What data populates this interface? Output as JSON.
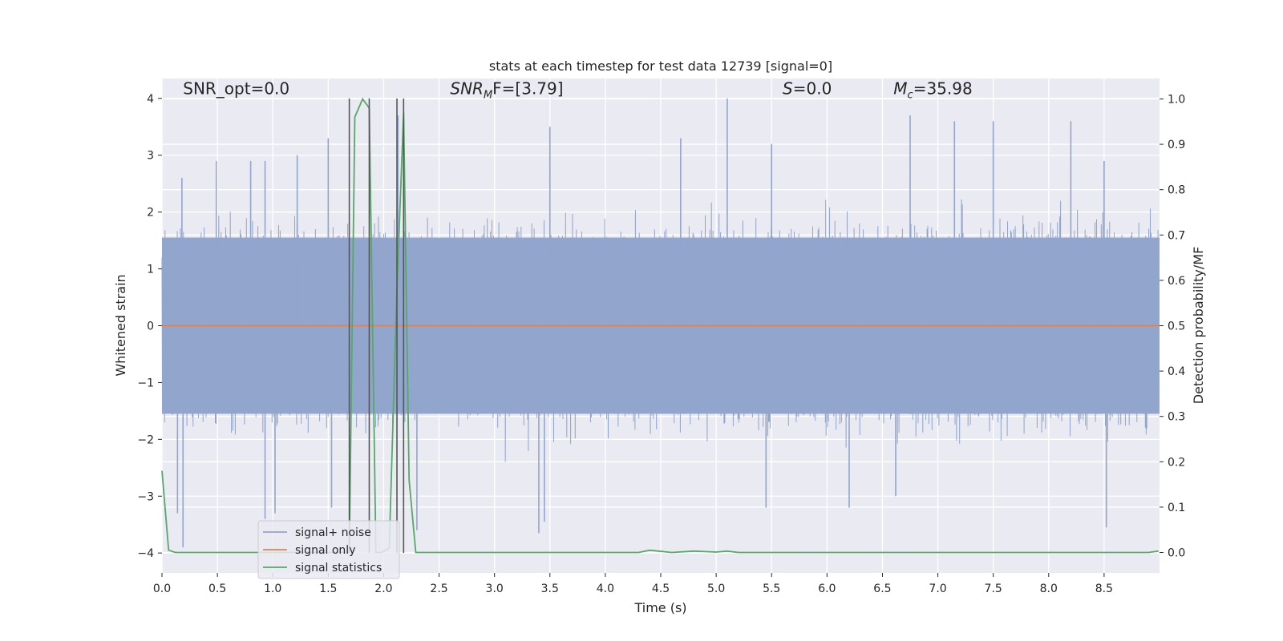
{
  "chart_data": {
    "type": "line",
    "title": "stats at each timestep for test data 12739 [signal=0]",
    "xlabel": "Time (s)",
    "ylabel": "Whitened strain",
    "y2label": "Detection probability/MF",
    "xlim": [
      0.0,
      9.0
    ],
    "ylim": [
      -4.35,
      4.35
    ],
    "y2lim": [
      -0.045,
      1.045
    ],
    "x_ticks": [
      0.0,
      0.5,
      1.0,
      1.5,
      2.0,
      2.5,
      3.0,
      3.5,
      4.0,
      4.5,
      5.0,
      5.5,
      6.0,
      6.5,
      7.0,
      7.5,
      8.0,
      8.5
    ],
    "x_tick_labels": [
      "0.0",
      "0.5",
      "1.0",
      "1.5",
      "2.0",
      "2.5",
      "3.0",
      "3.5",
      "4.0",
      "4.5",
      "5.0",
      "5.5",
      "6.0",
      "6.5",
      "7.0",
      "7.5",
      "8.0",
      "8.5"
    ],
    "y_ticks": [
      4,
      3,
      2,
      1,
      0,
      -1,
      -2,
      -3,
      -4
    ],
    "y_tick_labels": [
      "4",
      "3",
      "2",
      "1",
      "0",
      "−1",
      "−2",
      "−3",
      "−4"
    ],
    "y2_ticks": [
      1.0,
      0.9,
      0.8,
      0.7,
      0.6,
      0.5,
      0.4,
      0.3,
      0.2,
      0.1,
      0.0
    ],
    "y2_tick_labels": [
      "1.0",
      "0.9",
      "0.8",
      "0.7",
      "0.6",
      "0.5",
      "0.4",
      "0.3",
      "0.2",
      "0.1",
      "0.0"
    ],
    "grid": true,
    "legend_position": "lower-left",
    "annotations": [
      {
        "text": "SNR_opt=0.0",
        "x": 0.19,
        "y": 4.1
      },
      {
        "text": "SNR",
        "sub": "M",
        "rest": "F=[3.79]",
        "italic_prefix": true,
        "x": 2.6,
        "y": 4.1
      },
      {
        "text": "S",
        "rest": "=0.0",
        "italic_prefix": true,
        "x": 5.6,
        "y": 4.1
      },
      {
        "text": "M",
        "sub": "c",
        "rest": "=35.98",
        "italic_prefix": true,
        "x": 6.6,
        "y": 4.1
      }
    ],
    "vertical_lines": [
      1.69,
      1.87,
      2.12,
      2.18
    ],
    "series": [
      {
        "name": "signal+ noise",
        "color": "#92a5cc",
        "kind": "noise",
        "envelope": 1.55,
        "min": -3.9,
        "max": 4.0,
        "peaks": [
          [
            0.18,
            2.6
          ],
          [
            0.49,
            2.9
          ],
          [
            0.8,
            2.9
          ],
          [
            0.93,
            2.9
          ],
          [
            1.5,
            3.3
          ],
          [
            2.13,
            3.7
          ],
          [
            3.5,
            3.5
          ],
          [
            4.68,
            3.3
          ],
          [
            5.1,
            4.0
          ],
          [
            5.5,
            3.2
          ],
          [
            6.75,
            3.7
          ],
          [
            7.15,
            3.6
          ],
          [
            7.5,
            3.6
          ],
          [
            8.2,
            3.6
          ],
          [
            8.5,
            2.9
          ],
          [
            1.22,
            3.0
          ],
          [
            1.53,
            -3.2
          ],
          [
            0.93,
            -3.4
          ],
          [
            1.02,
            -3.3
          ],
          [
            0.14,
            -3.3
          ],
          [
            0.19,
            -3.9
          ],
          [
            3.4,
            -3.65
          ],
          [
            3.45,
            -3.45
          ],
          [
            8.52,
            -3.55
          ],
          [
            2.3,
            -3.6
          ],
          [
            5.45,
            -3.2
          ],
          [
            6.2,
            -3.2
          ],
          [
            6.62,
            -3.0
          ]
        ]
      },
      {
        "name": "signal only",
        "color": "#dd8452",
        "kind": "line",
        "x": [
          0.0,
          9.0
        ],
        "y": [
          0.0,
          0.0
        ]
      },
      {
        "name": "signal statistics",
        "color": "#55a868",
        "axis": "right",
        "x": [
          0.0,
          0.06,
          0.12,
          0.18,
          0.5,
          1.0,
          1.5,
          1.66,
          1.69,
          1.74,
          1.81,
          1.87,
          1.93,
          1.98,
          2.05,
          2.12,
          2.18,
          2.23,
          2.29,
          2.5,
          3.0,
          3.5,
          4.0,
          4.3,
          4.4,
          4.6,
          4.8,
          5.0,
          5.1,
          5.2,
          5.5,
          6.0,
          6.5,
          7.0,
          7.5,
          8.0,
          8.5,
          8.9,
          8.99
        ],
        "y": [
          0.18,
          0.005,
          0.0,
          0.0,
          0.0,
          0.0,
          0.0,
          0.0,
          0.0,
          0.96,
          1.0,
          0.98,
          0.0,
          0.0,
          0.01,
          0.58,
          0.97,
          0.16,
          0.0,
          0.0,
          0.0,
          0.0,
          0.0,
          0.0,
          0.005,
          0.0,
          0.003,
          0.001,
          0.003,
          0.0,
          0.0,
          0.0,
          0.0,
          0.0,
          0.0,
          0.0,
          0.0,
          0.0,
          0.003
        ]
      }
    ]
  }
}
